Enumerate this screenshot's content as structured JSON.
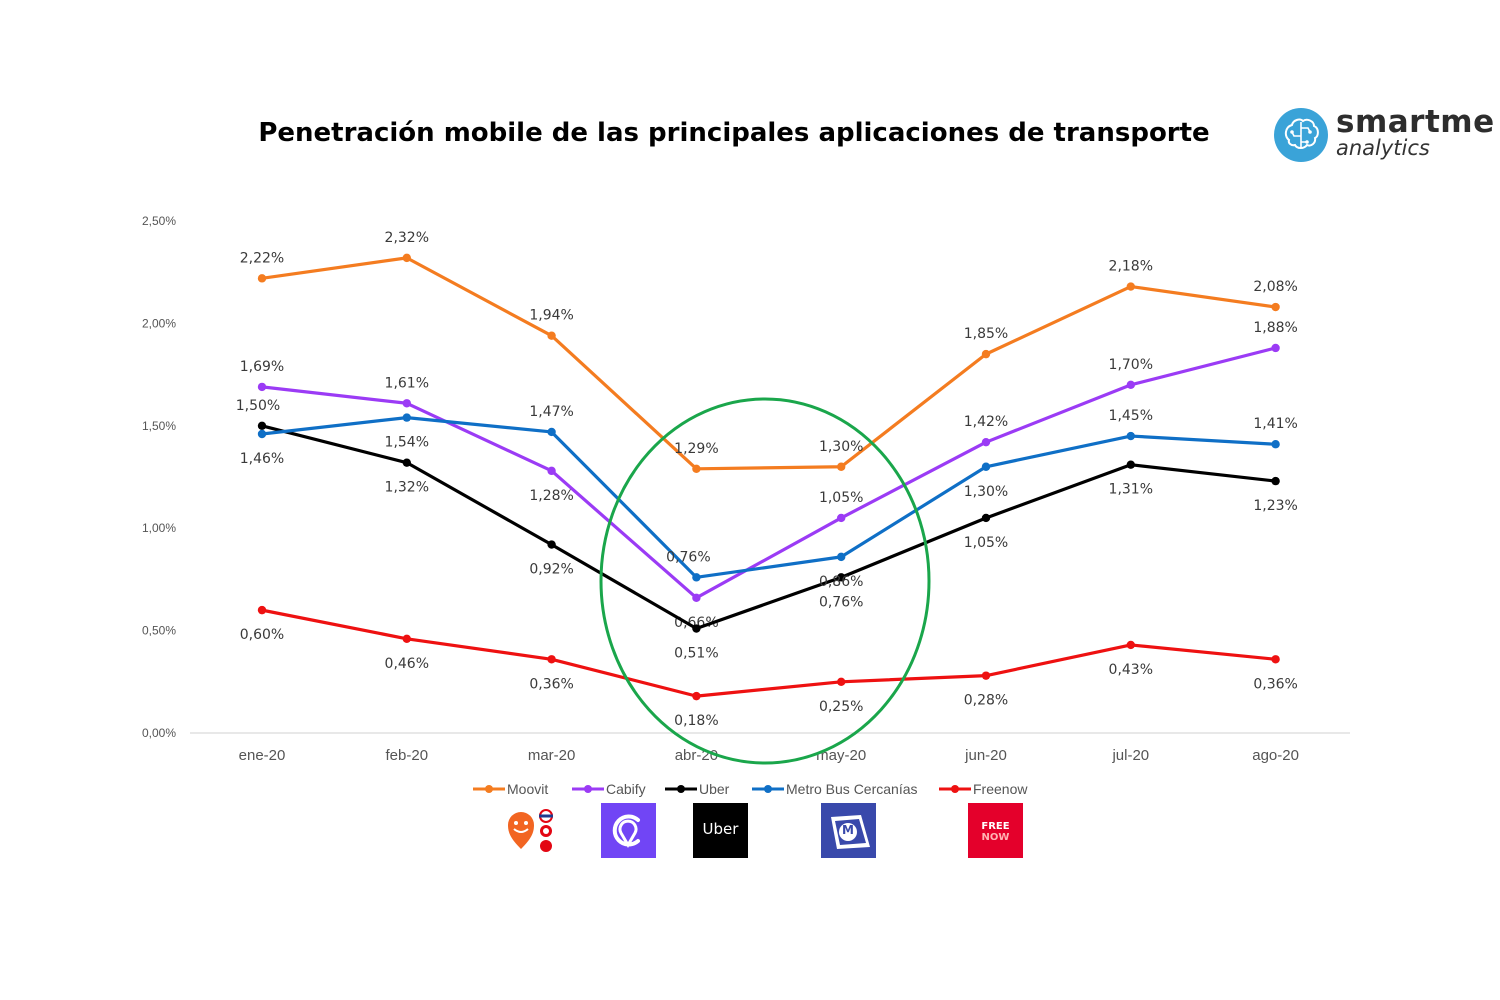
{
  "title": "Penetración mobile de las principales aplicaciones de transporte",
  "logo": {
    "brand": "smartme",
    "sub": "analytics",
    "icon": "brain-circuit-icon"
  },
  "app_icons": [
    {
      "name": "moovit-app-icon",
      "color": "#f26522"
    },
    {
      "name": "cabify-app-icon",
      "color": "#7145f5"
    },
    {
      "name": "uber-app-icon",
      "label": "Uber",
      "color": "#000000"
    },
    {
      "name": "metro-bus-cercanias-app-icon",
      "label": "M",
      "color": "#3949ab"
    },
    {
      "name": "freenow-app-icon",
      "label_top": "FREE",
      "label_bottom": "NOW",
      "color": "#e4002b"
    }
  ],
  "highlight": {
    "shape": "ellipse",
    "color": "#1aa64b",
    "months": [
      "abr-20",
      "may-20"
    ]
  },
  "chart_data": {
    "type": "line",
    "x": [
      "ene-20",
      "feb-20",
      "mar-20",
      "abr-20",
      "may-20",
      "jun-20",
      "jul-20",
      "ago-20"
    ],
    "yticks": [
      "0,00%",
      "0,50%",
      "1,00%",
      "1,50%",
      "2,00%",
      "2,50%"
    ],
    "ylim": [
      0,
      2.5
    ],
    "grid": false,
    "legend": "bottom",
    "series": [
      {
        "name": "Moovit",
        "color": "#f47c20",
        "values": [
          2.22,
          2.32,
          1.94,
          1.29,
          1.3,
          1.85,
          2.18,
          2.08
        ],
        "labels": [
          "2,22%",
          "2,32%",
          "1,94%",
          "1,29%",
          "1,30%",
          "1,85%",
          "2,18%",
          "2,08%"
        ]
      },
      {
        "name": "Cabify",
        "color": "#9b3bf5",
        "values": [
          1.69,
          1.61,
          1.28,
          0.66,
          1.05,
          1.42,
          1.7,
          1.88
        ],
        "labels": [
          "1,69%",
          "1,61%",
          "1,28%",
          "0,66%",
          "1,05%",
          "1,42%",
          "1,70%",
          "1,88%"
        ]
      },
      {
        "name": "Uber",
        "color": "#000000",
        "values": [
          1.5,
          1.32,
          0.92,
          0.51,
          0.76,
          1.05,
          1.31,
          1.23
        ],
        "labels": [
          "1,50%",
          "1,32%",
          "0,92%",
          "0,51%",
          "0,76%",
          "1,05%",
          "1,31%",
          "1,23%"
        ]
      },
      {
        "name": "Metro Bus Cercanías",
        "color": "#0f6fc6",
        "values": [
          1.46,
          1.54,
          1.47,
          0.76,
          0.86,
          1.3,
          1.45,
          1.41
        ],
        "labels": [
          "1,46%",
          "1,54%",
          "1,47%",
          "0,76%",
          "0,86%",
          "1,30%",
          "1,45%",
          "1,41%"
        ]
      },
      {
        "name": "Freenow",
        "color": "#ee1111",
        "values": [
          0.6,
          0.46,
          0.36,
          0.18,
          0.25,
          0.28,
          0.43,
          0.36
        ],
        "labels": [
          "0,60%",
          "0,46%",
          "0,36%",
          "0,18%",
          "0,25%",
          "0,28%",
          "0,43%",
          "0,36%"
        ]
      }
    ]
  }
}
